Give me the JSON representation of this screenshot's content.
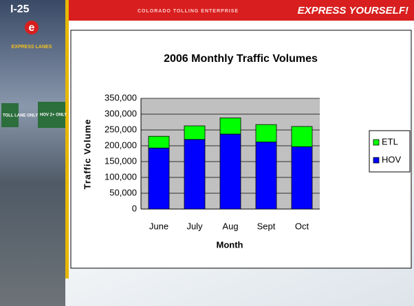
{
  "slide": {
    "route": "I-25",
    "logo_letter": "e",
    "logo_text": "EXPRESS LANES",
    "tagline": "COLORADO TOLLING ENTERPRISE",
    "slogan": "EXPRESS YOURSELF!",
    "sign_left": "TOLL LANE ONLY",
    "sign_right": "HOV 2+ ONLY"
  },
  "chart_data": {
    "type": "stacked_bar",
    "title": "2006 Monthly Traffic Volumes",
    "x_label": "Month",
    "y_label": "Traffic Volume",
    "categories": [
      "June",
      "July",
      "Aug",
      "Sept",
      "Oct"
    ],
    "series": [
      {
        "name": "HOV",
        "color": "#0000ff",
        "values": [
          193000,
          220000,
          237000,
          212000,
          197000
        ]
      },
      {
        "name": "ETL",
        "color": "#00ff00",
        "values": [
          37000,
          43000,
          51000,
          55000,
          64000
        ]
      }
    ],
    "ylim": [
      0,
      350000
    ],
    "yticks": [
      0,
      {
        "value": 50000,
        "label": "50,000"
      },
      {
        "value": 100000,
        "label": "100,000"
      },
      {
        "value": 150000,
        "label": "150,000"
      },
      {
        "value": 200000,
        "label": "200,000"
      },
      {
        "value": 250000,
        "label": "250,000"
      },
      {
        "value": 300000,
        "label": "300,000"
      },
      {
        "value": 350000,
        "label": "350,000"
      }
    ],
    "grid": true,
    "legend": "right"
  }
}
